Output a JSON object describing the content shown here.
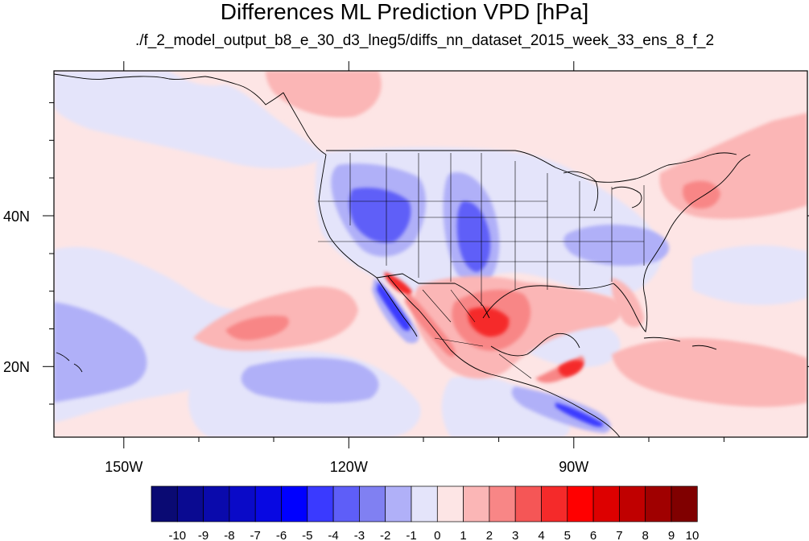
{
  "title": "Differences ML Prediction VPD [hPa]",
  "subtitle": "./f_2_model_output_b8_e_30_d3_lneg5/diffs_nn_dataset_2015_week_33_ens_8_f_2",
  "map": {
    "projection": "cylindrical-equidistant",
    "lon_range": [
      -159,
      -62
    ],
    "lat_range": [
      10,
      58
    ],
    "lon_ticks": [
      {
        "value": -150,
        "label": "150W"
      },
      {
        "value": -120,
        "label": "120W"
      },
      {
        "value": -90,
        "label": "90W"
      }
    ],
    "lon_minor": [
      -140,
      -130,
      -110,
      -100,
      -80,
      -70
    ],
    "lat_ticks": [
      {
        "value": 40,
        "label": "40N"
      },
      {
        "value": 20,
        "label": "20N"
      }
    ],
    "lat_minor": [
      15,
      25,
      30,
      35,
      45,
      50,
      55
    ]
  },
  "colorbar": {
    "labels": [
      "-10",
      "-9",
      "-8",
      "-7",
      "-6",
      "-5",
      "-4",
      "-3",
      "-2",
      "-1",
      "0",
      "1",
      "2",
      "3",
      "4",
      "5",
      "6",
      "7",
      "8",
      "9",
      "10"
    ],
    "colors": [
      "#0a0a73",
      "#0a0a91",
      "#0a0aac",
      "#0a0ac8",
      "#0808e2",
      "#0000ff",
      "#3a3aff",
      "#5e5ef8",
      "#8080f2",
      "#b0b0f8",
      "#e4e4fa",
      "#fde5e5",
      "#fbb6b6",
      "#f88686",
      "#f55656",
      "#f52a2a",
      "#ff0000",
      "#dd0000",
      "#c00000",
      "#a00000",
      "#800000"
    ]
  }
}
